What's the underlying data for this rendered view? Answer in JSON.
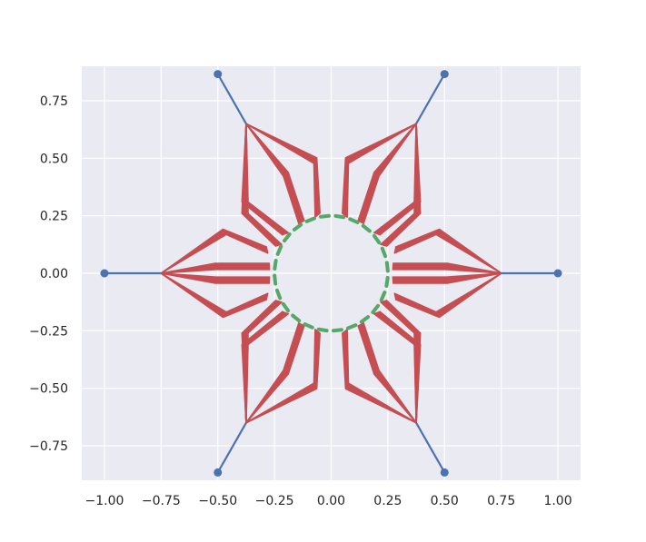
{
  "chart_data": {
    "type": "line",
    "title": "",
    "xlabel": "",
    "ylabel": "",
    "xlim": [
      -1.1,
      1.1
    ],
    "ylim": [
      -0.9,
      0.9
    ],
    "grid": true,
    "x_ticks": [
      -1.0,
      -0.75,
      -0.5,
      -0.25,
      0.0,
      0.25,
      0.5,
      0.75,
      1.0
    ],
    "x_tick_labels": [
      "−1.00",
      "−0.75",
      "−0.50",
      "−0.25",
      "0.00",
      "0.25",
      "0.50",
      "0.75",
      "1.00"
    ],
    "y_ticks": [
      0.75,
      0.5,
      0.25,
      0.0,
      -0.25,
      -0.5,
      -0.75
    ],
    "y_tick_labels": [
      "0.75",
      "0.50",
      "0.25",
      "0.00",
      "−0.25",
      "−0.50",
      "−0.75"
    ],
    "series": [
      {
        "color": "#4c72b0",
        "kind": "outer-spokes",
        "points": [
          [
            1.0,
            0.0
          ],
          [
            0.5,
            0.866
          ],
          [
            -0.5,
            0.866
          ],
          [
            -1.0,
            0.0
          ],
          [
            -0.5,
            -0.866
          ],
          [
            0.5,
            -0.866
          ]
        ],
        "hubs": [
          [
            0.75,
            0.0
          ],
          [
            0.375,
            0.65
          ],
          [
            -0.375,
            0.65
          ],
          [
            -0.75,
            0.0
          ],
          [
            -0.375,
            -0.65
          ],
          [
            0.375,
            -0.65
          ]
        ]
      },
      {
        "color": "#c44e52",
        "kind": "fan-edges",
        "paths": [
          [
            [
              0.75,
              0.0
            ],
            [
              0.47,
              0.18
            ],
            [
              0.28,
              0.1
            ]
          ],
          [
            [
              0.75,
              0.0
            ],
            [
              0.51,
              0.03
            ],
            [
              0.27,
              0.03
            ]
          ],
          [
            [
              0.75,
              0.0
            ],
            [
              0.51,
              -0.03
            ],
            [
              0.27,
              -0.03
            ]
          ],
          [
            [
              0.75,
              0.0
            ],
            [
              0.47,
              -0.18
            ],
            [
              0.28,
              -0.1
            ]
          ],
          [
            [
              0.375,
              0.65
            ],
            [
              0.07,
              0.49
            ],
            [
              0.06,
              0.25
            ]
          ],
          [
            [
              0.375,
              0.65
            ],
            [
              0.2,
              0.43
            ],
            [
              0.13,
              0.22
            ]
          ],
          [
            [
              0.375,
              0.65
            ],
            [
              0.38,
              0.31
            ],
            [
              0.2,
              0.17
            ]
          ],
          [
            [
              0.375,
              0.65
            ],
            [
              0.38,
              0.26
            ],
            [
              0.23,
              0.12
            ]
          ],
          [
            [
              -0.375,
              0.65
            ],
            [
              -0.07,
              0.49
            ],
            [
              -0.06,
              0.25
            ]
          ],
          [
            [
              -0.375,
              0.65
            ],
            [
              -0.2,
              0.43
            ],
            [
              -0.13,
              0.22
            ]
          ],
          [
            [
              -0.375,
              0.65
            ],
            [
              -0.38,
              0.31
            ],
            [
              -0.2,
              0.17
            ]
          ],
          [
            [
              -0.375,
              0.65
            ],
            [
              -0.38,
              0.26
            ],
            [
              -0.23,
              0.12
            ]
          ],
          [
            [
              -0.75,
              0.0
            ],
            [
              -0.47,
              0.18
            ],
            [
              -0.28,
              0.1
            ]
          ],
          [
            [
              -0.75,
              0.0
            ],
            [
              -0.51,
              0.03
            ],
            [
              -0.27,
              0.03
            ]
          ],
          [
            [
              -0.75,
              0.0
            ],
            [
              -0.51,
              -0.03
            ],
            [
              -0.27,
              -0.03
            ]
          ],
          [
            [
              -0.75,
              0.0
            ],
            [
              -0.47,
              -0.18
            ],
            [
              -0.28,
              -0.1
            ]
          ],
          [
            [
              -0.375,
              -0.65
            ],
            [
              -0.07,
              -0.49
            ],
            [
              -0.06,
              -0.25
            ]
          ],
          [
            [
              -0.375,
              -0.65
            ],
            [
              -0.2,
              -0.43
            ],
            [
              -0.13,
              -0.22
            ]
          ],
          [
            [
              -0.375,
              -0.65
            ],
            [
              -0.38,
              -0.31
            ],
            [
              -0.2,
              -0.17
            ]
          ],
          [
            [
              -0.375,
              -0.65
            ],
            [
              -0.38,
              -0.26
            ],
            [
              -0.23,
              -0.12
            ]
          ],
          [
            [
              0.375,
              -0.65
            ],
            [
              0.07,
              -0.49
            ],
            [
              0.06,
              -0.25
            ]
          ],
          [
            [
              0.375,
              -0.65
            ],
            [
              0.2,
              -0.43
            ],
            [
              0.13,
              -0.22
            ]
          ],
          [
            [
              0.375,
              -0.65
            ],
            [
              0.38,
              -0.31
            ],
            [
              0.2,
              -0.17
            ]
          ],
          [
            [
              0.375,
              -0.65
            ],
            [
              0.38,
              -0.26
            ],
            [
              0.23,
              -0.12
            ]
          ]
        ]
      },
      {
        "color": "#55a868",
        "kind": "inner-ring",
        "radius": 0.25,
        "count": 24
      }
    ]
  }
}
